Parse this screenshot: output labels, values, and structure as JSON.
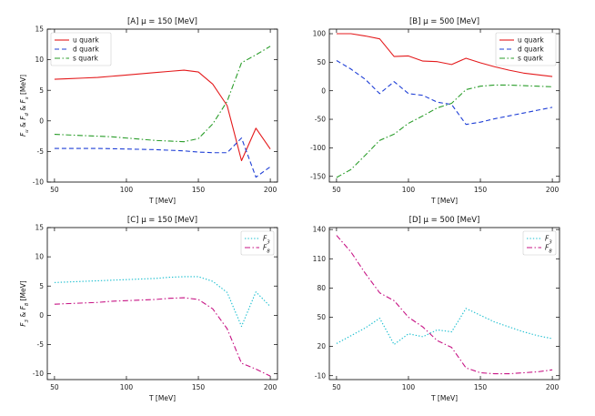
{
  "chart_data": [
    {
      "type": "line",
      "title": "[A] μ = 150 [MeV]",
      "xlabel": "T [MeV]",
      "ylabel": "F_u & F_d & F_s [MeV]",
      "xlim": [
        45,
        205
      ],
      "ylim": [
        -10,
        15
      ],
      "xticks": [
        50,
        100,
        150,
        200
      ],
      "yticks": [
        -10,
        -5,
        0,
        5,
        10,
        15
      ],
      "legend": "top-left",
      "series": [
        {
          "name": "u quark",
          "color": "#e41a1c",
          "style": "solid",
          "x": [
            50,
            60,
            70,
            80,
            90,
            100,
            110,
            120,
            130,
            140,
            150,
            160,
            170,
            180,
            190,
            200
          ],
          "y": [
            6.8,
            6.9,
            7.0,
            7.1,
            7.3,
            7.5,
            7.7,
            7.9,
            8.1,
            8.3,
            8.0,
            6.0,
            2.5,
            -6.5,
            -1.2,
            -4.6
          ]
        },
        {
          "name": "d quark",
          "color": "#1f3fd6",
          "style": "dashed",
          "x": [
            50,
            60,
            70,
            80,
            90,
            100,
            110,
            120,
            130,
            140,
            150,
            160,
            170,
            180,
            190,
            200
          ],
          "y": [
            -4.5,
            -4.5,
            -4.5,
            -4.5,
            -4.55,
            -4.6,
            -4.65,
            -4.7,
            -4.8,
            -4.9,
            -5.1,
            -5.2,
            -5.2,
            -2.8,
            -9.2,
            -7.5
          ]
        },
        {
          "name": "s quark",
          "color": "#2a9d2a",
          "style": "dashdot",
          "x": [
            50,
            60,
            70,
            80,
            90,
            100,
            110,
            120,
            130,
            140,
            150,
            160,
            170,
            180,
            190,
            200
          ],
          "y": [
            -2.2,
            -2.3,
            -2.4,
            -2.5,
            -2.6,
            -2.8,
            -3.0,
            -3.2,
            -3.3,
            -3.4,
            -2.9,
            -0.5,
            3.2,
            9.5,
            10.8,
            12.2
          ]
        }
      ]
    },
    {
      "type": "line",
      "title": "[B] μ = 500 [MeV]",
      "xlabel": "T [MeV]",
      "ylabel": "",
      "xlim": [
        45,
        205
      ],
      "ylim": [
        -160,
        108
      ],
      "xticks": [
        50,
        100,
        150,
        200
      ],
      "yticks": [
        -150,
        -100,
        -50,
        0,
        50,
        100
      ],
      "legend": "top-right",
      "series": [
        {
          "name": "u quark",
          "color": "#e41a1c",
          "style": "solid",
          "x": [
            50,
            60,
            70,
            80,
            90,
            100,
            110,
            120,
            130,
            140,
            150,
            160,
            170,
            180,
            190,
            200
          ],
          "y": [
            100,
            100,
            96,
            91,
            60,
            61,
            52,
            51,
            46,
            57,
            49,
            42,
            36,
            31,
            28,
            25
          ]
        },
        {
          "name": "d quark",
          "color": "#1f3fd6",
          "style": "dashed",
          "x": [
            50,
            60,
            70,
            80,
            90,
            100,
            110,
            120,
            130,
            140,
            150,
            160,
            170,
            180,
            190,
            200
          ],
          "y": [
            53,
            38,
            20,
            -5,
            16,
            -5,
            -8,
            -20,
            -24,
            -59,
            -55,
            -49,
            -44,
            -39,
            -34,
            -29
          ]
        },
        {
          "name": "s quark",
          "color": "#2a9d2a",
          "style": "dashdot",
          "x": [
            50,
            60,
            70,
            80,
            90,
            100,
            110,
            120,
            130,
            140,
            150,
            160,
            170,
            180,
            190,
            200
          ],
          "y": [
            -152,
            -138,
            -113,
            -87,
            -76,
            -57,
            -44,
            -30,
            -22,
            2,
            8,
            10,
            10,
            9,
            8,
            7
          ]
        }
      ]
    },
    {
      "type": "line",
      "title": "[C] μ = 150 [MeV]",
      "xlabel": "T [MeV]",
      "ylabel": "F_3 & F_8 [MeV]",
      "xlim": [
        45,
        205
      ],
      "ylim": [
        -11,
        15
      ],
      "xticks": [
        50,
        100,
        150,
        200
      ],
      "yticks": [
        -10,
        -5,
        0,
        5,
        10,
        15
      ],
      "legend": "top-right",
      "series": [
        {
          "name": "F_3",
          "color": "#17becf",
          "style": "dotted",
          "x": [
            50,
            60,
            70,
            80,
            90,
            100,
            110,
            120,
            130,
            140,
            150,
            160,
            170,
            180,
            190,
            200
          ],
          "y": [
            5.6,
            5.7,
            5.8,
            5.9,
            6.0,
            6.1,
            6.2,
            6.3,
            6.5,
            6.6,
            6.6,
            5.8,
            3.9,
            -1.9,
            4.0,
            1.5
          ]
        },
        {
          "name": "F_8",
          "color": "#c71585",
          "style": "dashdot",
          "x": [
            50,
            60,
            70,
            80,
            90,
            100,
            110,
            120,
            130,
            140,
            150,
            160,
            170,
            180,
            190,
            200
          ],
          "y": [
            1.9,
            2.0,
            2.1,
            2.2,
            2.4,
            2.5,
            2.6,
            2.7,
            2.9,
            3.0,
            2.7,
            1.1,
            -2.3,
            -8.2,
            -9.2,
            -10.4
          ]
        }
      ]
    },
    {
      "type": "line",
      "title": "[D] μ = 500 [MeV]",
      "xlabel": "T [MeV]",
      "ylabel": "",
      "xlim": [
        45,
        205
      ],
      "ylim": [
        -14,
        142
      ],
      "xticks": [
        50,
        100,
        150,
        200
      ],
      "yticks": [
        -10,
        20,
        50,
        80,
        110,
        140
      ],
      "legend": "top-right",
      "series": [
        {
          "name": "F_3",
          "color": "#17becf",
          "style": "dotted",
          "x": [
            50,
            60,
            70,
            80,
            90,
            100,
            110,
            120,
            130,
            140,
            150,
            160,
            170,
            180,
            190,
            200
          ],
          "y": [
            23,
            31,
            39,
            49,
            22,
            33,
            30,
            37,
            35,
            59,
            52,
            45,
            40,
            35,
            31,
            28
          ]
        },
        {
          "name": "F_8",
          "color": "#c71585",
          "style": "dashdot",
          "x": [
            50,
            60,
            70,
            80,
            90,
            100,
            110,
            120,
            130,
            140,
            150,
            160,
            170,
            180,
            190,
            200
          ],
          "y": [
            134,
            117,
            95,
            75,
            67,
            50,
            40,
            26,
            19,
            -2,
            -7,
            -8,
            -8,
            -7,
            -6,
            -4
          ]
        }
      ]
    }
  ]
}
